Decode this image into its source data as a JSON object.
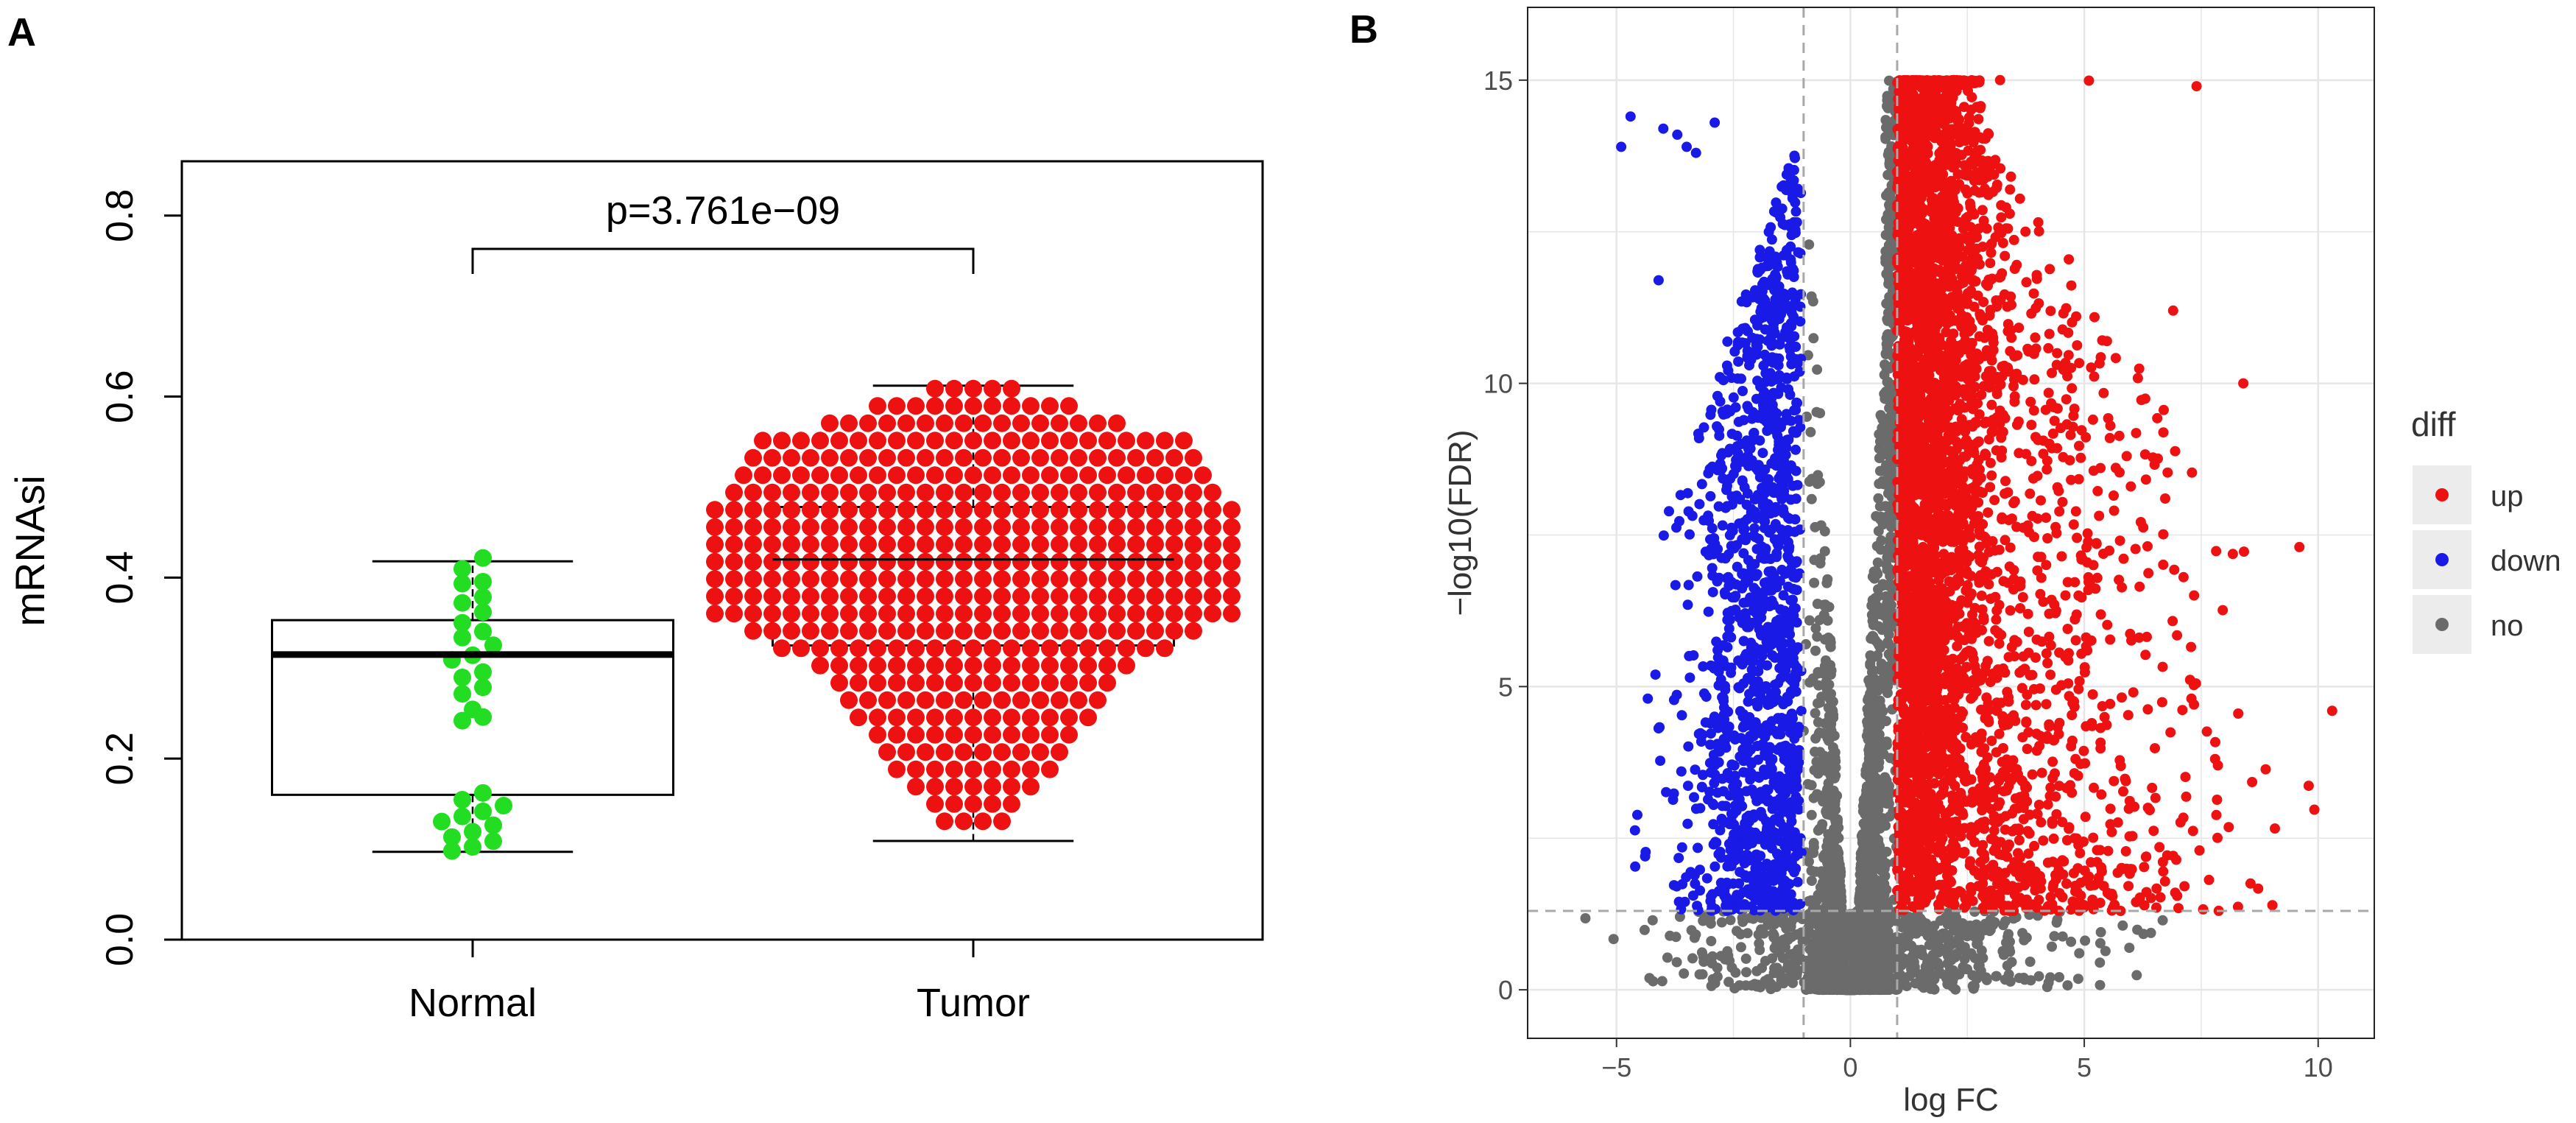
{
  "figure": {
    "panels": [
      {
        "label": "A"
      },
      {
        "label": "B"
      }
    ]
  },
  "colors": {
    "normal": "#22dd22",
    "tumor": "#ee1111",
    "up": "#ee1111",
    "down": "#1a1ae6",
    "no": "#6b6b6b",
    "panel_b_bg": "#ffffff",
    "grid": "#e6e6e6",
    "legend_key_bg": "#ececec"
  },
  "chart_data": [
    {
      "type": "scatter",
      "subtype": "boxplot-beeswarm",
      "title": "",
      "panel": "A",
      "xlabel": "",
      "ylabel": "mRNAsi",
      "ylim": [
        0.0,
        0.86
      ],
      "yticks": [
        0.0,
        0.2,
        0.4,
        0.6,
        0.8
      ],
      "ytick_labels": [
        "0.0",
        "0.2",
        "0.4",
        "0.6",
        "0.8"
      ],
      "categories": [
        "Normal",
        "Tumor"
      ],
      "boxes": [
        {
          "name": "Normal",
          "whisker_low": 0.097,
          "q1": 0.16,
          "median": 0.315,
          "q3": 0.353,
          "whisker_high": 0.418,
          "n_points": 32,
          "color_key": "normal"
        },
        {
          "name": "Tumor",
          "whisker_low": 0.109,
          "q1": 0.325,
          "median": 0.42,
          "q3": 0.478,
          "whisker_high": 0.612,
          "n_points": 480,
          "color_key": "tumor"
        }
      ],
      "annotation": {
        "text": "p=3.761e−09",
        "bracket_y": 0.735
      },
      "grid": false
    },
    {
      "type": "scatter",
      "subtype": "volcano",
      "title": "",
      "panel": "B",
      "xlabel": "log FC",
      "ylabel": "−log10(FDR)",
      "xlim": [
        -6.9,
        11.2
      ],
      "ylim": [
        -0.8,
        16.2
      ],
      "xticks": [
        -5,
        0,
        5,
        10
      ],
      "xtick_labels": [
        "−5",
        "0",
        "5",
        "10"
      ],
      "yticks": [
        0,
        5,
        10,
        15
      ],
      "ytick_labels": [
        "0",
        "5",
        "10",
        "15"
      ],
      "thresholds": {
        "logfc": [
          -1,
          1
        ],
        "neg_log10_fdr": 1.3
      },
      "y_cap": 15,
      "approx_counts": {
        "up": 4200,
        "down": 1300,
        "no": 4200
      },
      "legend": {
        "title": "diff",
        "position": "right",
        "entries": [
          {
            "label": "up",
            "color_key": "up"
          },
          {
            "label": "down",
            "color_key": "down"
          },
          {
            "label": "no",
            "color_key": "no"
          }
        ]
      },
      "grid": true
    }
  ]
}
